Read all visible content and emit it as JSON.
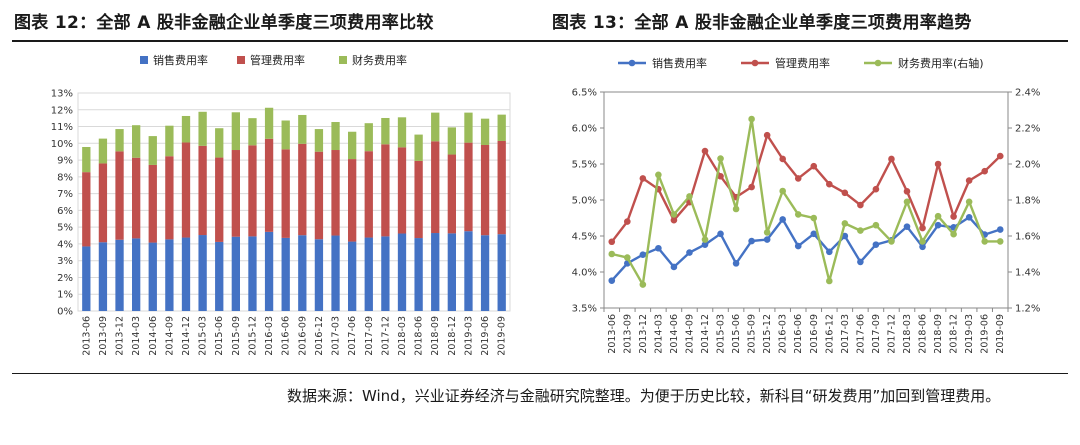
{
  "figures": {
    "left_title": "图表 12：全部 A 股非金融企业单季度三项费用率比较",
    "right_title": "图表 13：全部 A 股非金融企业单季度三项费用率趋势"
  },
  "source_note": "数据来源：Wind，兴业证券经济与金融研究院整理。为便于历史比较，新科目“研发费用”加回到管理费用。",
  "colors": {
    "sales": "#4472C4",
    "admin": "#C0504D",
    "finance": "#9BBB59",
    "grid": "#d9d9d9",
    "axis": "#888888"
  },
  "chart_data": [
    {
      "type": "bar",
      "stacked": true,
      "title": "图表 12：全部 A 股非金融企业单季度三项费用率比较",
      "categories": [
        "2013-06",
        "2013-09",
        "2013-12",
        "2014-03",
        "2014-06",
        "2014-09",
        "2014-12",
        "2015-03",
        "2015-06",
        "2015-09",
        "2015-12",
        "2016-03",
        "2016-06",
        "2016-09",
        "2016-12",
        "2017-03",
        "2017-06",
        "2017-09",
        "2017-12",
        "2018-03",
        "2018-06",
        "2018-09",
        "2018-12",
        "2019-03",
        "2019-06",
        "2019-09"
      ],
      "series": [
        {
          "name": "销售费用率",
          "values": [
            3.85,
            4.1,
            4.25,
            4.33,
            4.08,
            4.27,
            4.38,
            4.53,
            4.12,
            4.43,
            4.45,
            4.72,
            4.36,
            4.52,
            4.28,
            4.5,
            4.14,
            4.38,
            4.45,
            4.62,
            4.35,
            4.65,
            4.63,
            4.76,
            4.52,
            4.58
          ]
        },
        {
          "name": "管理费用率",
          "values": [
            4.43,
            4.7,
            5.27,
            4.81,
            4.63,
            4.96,
            5.67,
            5.32,
            5.03,
            5.17,
            5.43,
            5.55,
            5.28,
            5.45,
            5.22,
            5.1,
            4.92,
            5.15,
            5.49,
            5.14,
            4.6,
            5.47,
            4.7,
            5.28,
            5.38,
            5.56
          ]
        },
        {
          "name": "财务费用率",
          "values": [
            1.5,
            1.48,
            1.33,
            1.94,
            1.72,
            1.82,
            1.58,
            2.03,
            1.75,
            2.25,
            1.62,
            1.85,
            1.72,
            1.72,
            1.35,
            1.67,
            1.63,
            1.67,
            1.57,
            1.79,
            1.57,
            1.71,
            1.62,
            1.79,
            1.57,
            1.57
          ]
        }
      ],
      "ylim": [
        0,
        13
      ],
      "yticks": [
        "0%",
        "1%",
        "2%",
        "3%",
        "4%",
        "5%",
        "6%",
        "7%",
        "8%",
        "9%",
        "10%",
        "11%",
        "12%",
        "13%"
      ],
      "legend": "top"
    },
    {
      "type": "line",
      "title": "图表 13：全部 A 股非金融企业单季度三项费用率趋势",
      "categories": [
        "2013-06",
        "2013-09",
        "2013-12",
        "2014-03",
        "2014-06",
        "2014-09",
        "2014-12",
        "2015-03",
        "2015-06",
        "2015-09",
        "2015-12",
        "2016-03",
        "2016-06",
        "2016-09",
        "2016-12",
        "2017-03",
        "2017-06",
        "2017-09",
        "2017-12",
        "2018-03",
        "2018-06",
        "2018-09",
        "2018-12",
        "2019-03",
        "2019-06",
        "2019-09"
      ],
      "series": [
        {
          "name": "销售费用率",
          "axis": "left",
          "values": [
            3.88,
            4.12,
            4.24,
            4.33,
            4.07,
            4.27,
            4.38,
            4.53,
            4.12,
            4.43,
            4.45,
            4.73,
            4.36,
            4.53,
            4.28,
            4.5,
            4.14,
            4.38,
            4.44,
            4.63,
            4.35,
            4.65,
            4.62,
            4.76,
            4.52,
            4.59
          ]
        },
        {
          "name": "管理费用率",
          "axis": "left",
          "values": [
            4.42,
            4.7,
            5.3,
            5.15,
            4.72,
            4.97,
            5.68,
            5.33,
            5.04,
            5.18,
            5.9,
            5.57,
            5.3,
            5.47,
            5.22,
            5.1,
            4.93,
            5.15,
            5.57,
            5.12,
            4.61,
            5.5,
            4.77,
            5.27,
            5.4,
            5.61
          ]
        },
        {
          "name": "财务费用率(右轴)",
          "axis": "right",
          "values": [
            1.5,
            1.48,
            1.33,
            1.94,
            1.72,
            1.82,
            1.58,
            2.03,
            1.75,
            2.25,
            1.62,
            1.85,
            1.72,
            1.7,
            1.35,
            1.67,
            1.63,
            1.66,
            1.57,
            1.79,
            1.57,
            1.71,
            1.61,
            1.79,
            1.57,
            1.57
          ]
        }
      ],
      "ylim_left": [
        3.5,
        6.5
      ],
      "ylim_right": [
        1.2,
        2.4
      ],
      "yticks_left": [
        "3.5%",
        "4.0%",
        "4.5%",
        "5.0%",
        "5.5%",
        "6.0%",
        "6.5%"
      ],
      "yticks_right": [
        "1.2%",
        "1.4%",
        "1.6%",
        "1.8%",
        "2.0%",
        "2.2%",
        "2.4%"
      ],
      "legend": "top"
    }
  ]
}
